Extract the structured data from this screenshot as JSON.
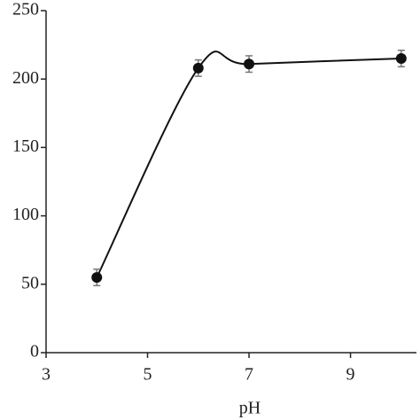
{
  "chart_data": {
    "type": "line",
    "x_label": "pH",
    "x": [
      4,
      6,
      7,
      10
    ],
    "series": [
      {
        "color": "#111111",
        "values": [
          55,
          208,
          211,
          215
        ],
        "errors": [
          6,
          6,
          6,
          6
        ]
      }
    ],
    "xlim": [
      3,
      10.3
    ],
    "xticks": [
      3,
      5,
      7,
      9
    ],
    "ylim": [
      0,
      250
    ],
    "yticks": [
      0,
      50,
      100,
      150,
      200,
      250
    ]
  }
}
